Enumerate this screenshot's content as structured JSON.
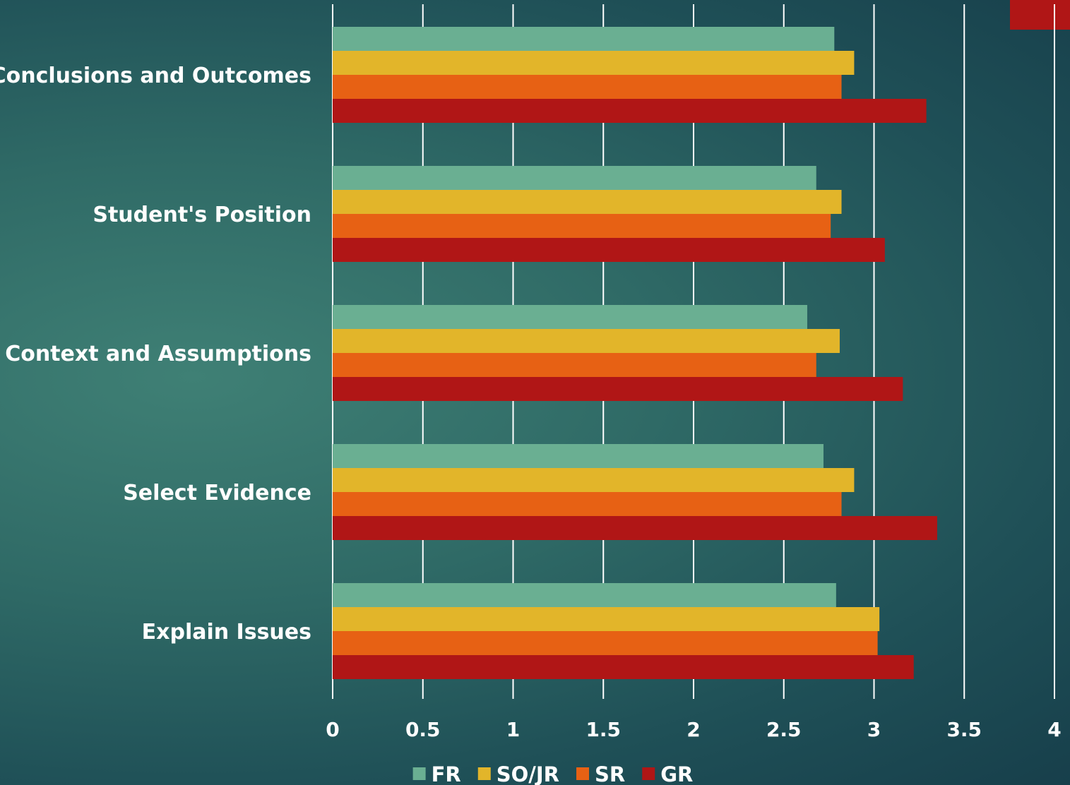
{
  "theme": {
    "accent_color": "#b01616",
    "gridline_color": "#ffffff",
    "text_color": "#ffffff"
  },
  "chart_data": {
    "type": "bar",
    "orientation": "horizontal",
    "categories": [
      "Conclusions and Outcomes",
      "Student's Position",
      "Context and Assumptions",
      "Select Evidence",
      "Explain Issues"
    ],
    "series": [
      {
        "name": "FR",
        "color": "#6aaf92",
        "values": [
          2.78,
          2.68,
          2.63,
          2.72,
          2.79
        ]
      },
      {
        "name": "SO/JR",
        "color": "#e2b52a",
        "values": [
          2.89,
          2.82,
          2.81,
          2.89,
          3.03
        ]
      },
      {
        "name": "SR",
        "color": "#e76114",
        "values": [
          2.82,
          2.76,
          2.68,
          2.82,
          3.02
        ]
      },
      {
        "name": "GR",
        "color": "#b01616",
        "values": [
          3.29,
          3.06,
          3.16,
          3.35,
          3.22
        ]
      }
    ],
    "xlim": [
      0,
      4
    ],
    "xticks": [
      0,
      0.5,
      1,
      1.5,
      2,
      2.5,
      3,
      3.5,
      4
    ],
    "xtick_labels": [
      "0",
      "0.5",
      "1",
      "1.5",
      "2",
      "2.5",
      "3",
      "3.5",
      "4"
    ],
    "grid": "vertical",
    "legend": "bottom"
  }
}
